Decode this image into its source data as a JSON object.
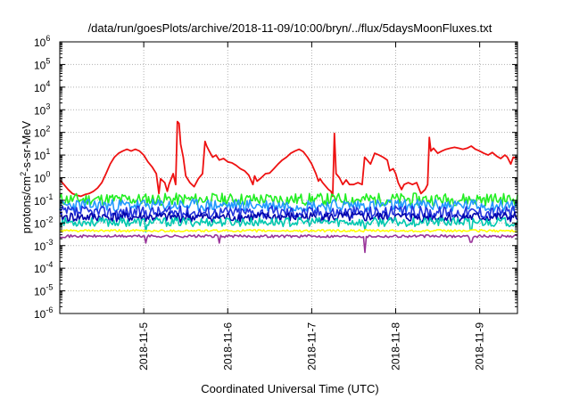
{
  "chart_data": {
    "type": "line",
    "title": "/data/run/goesPlots/archive/2018-11-09/10:00/bryn/../flux/5daysMoonFluxes.txt",
    "xlabel": "Coordinated Universal Time (UTC)",
    "ylabel": {
      "base": "protons/cm",
      "sup": "2",
      "rest": "-s-sr-MeV"
    },
    "x_range_days": [
      4.0,
      9.45
    ],
    "y_scale": "log",
    "ylim": [
      1e-06,
      1000000.0
    ],
    "grid": true,
    "x_ticks": [
      {
        "day": 5,
        "label": "2018-11-5"
      },
      {
        "day": 6,
        "label": "2018-11-6"
      },
      {
        "day": 7,
        "label": "2018-11-7"
      },
      {
        "day": 8,
        "label": "2018-11-8"
      },
      {
        "day": 9,
        "label": "2018-11-9"
      }
    ],
    "y_ticks": [
      {
        "exp": -6,
        "label": "10",
        "sup": "-6"
      },
      {
        "exp": -5,
        "label": "10",
        "sup": "-5"
      },
      {
        "exp": -4,
        "label": "10",
        "sup": "-4"
      },
      {
        "exp": -3,
        "label": "10",
        "sup": "-3"
      },
      {
        "exp": -2,
        "label": "10",
        "sup": "-2"
      },
      {
        "exp": -1,
        "label": "10",
        "sup": "-1"
      },
      {
        "exp": 0,
        "label": "10",
        "sup": "0"
      },
      {
        "exp": 1,
        "label": "10",
        "sup": "1"
      },
      {
        "exp": 2,
        "label": "10",
        "sup": "2"
      },
      {
        "exp": 3,
        "label": "10",
        "sup": "3"
      },
      {
        "exp": 4,
        "label": "10",
        "sup": "4"
      },
      {
        "exp": 5,
        "label": "10",
        "sup": "5"
      },
      {
        "exp": 6,
        "label": "10",
        "sup": "6"
      }
    ],
    "series": [
      {
        "color": "#ee1111",
        "points": [
          [
            4.0,
            0.8
          ],
          [
            4.05,
            0.5
          ],
          [
            4.1,
            0.3
          ],
          [
            4.15,
            0.2
          ],
          [
            4.2,
            0.17
          ],
          [
            4.25,
            0.15
          ],
          [
            4.3,
            0.18
          ],
          [
            4.35,
            0.2
          ],
          [
            4.4,
            0.25
          ],
          [
            4.45,
            0.35
          ],
          [
            4.5,
            0.6
          ],
          [
            4.55,
            1.5
          ],
          [
            4.6,
            4
          ],
          [
            4.65,
            8
          ],
          [
            4.7,
            12
          ],
          [
            4.75,
            15
          ],
          [
            4.8,
            18
          ],
          [
            4.85,
            15
          ],
          [
            4.9,
            18
          ],
          [
            4.95,
            15
          ],
          [
            5.0,
            10
          ],
          [
            5.05,
            5
          ],
          [
            5.1,
            3
          ],
          [
            5.15,
            1.5
          ],
          [
            5.18,
            0.2
          ],
          [
            5.2,
            0.9
          ],
          [
            5.25,
            0.6
          ],
          [
            5.28,
            0.25
          ],
          [
            5.3,
            0.5
          ],
          [
            5.35,
            1.5
          ],
          [
            5.38,
            0.5
          ],
          [
            5.4,
            300
          ],
          [
            5.42,
            250
          ],
          [
            5.44,
            30
          ],
          [
            5.47,
            8
          ],
          [
            5.5,
            1.2
          ],
          [
            5.55,
            0.6
          ],
          [
            5.6,
            0.4
          ],
          [
            5.65,
            0.9
          ],
          [
            5.7,
            1.5
          ],
          [
            5.73,
            40
          ],
          [
            5.75,
            25
          ],
          [
            5.78,
            15
          ],
          [
            5.82,
            8
          ],
          [
            5.86,
            10
          ],
          [
            5.9,
            6
          ],
          [
            5.95,
            7
          ],
          [
            6.0,
            5
          ],
          [
            6.05,
            4.5
          ],
          [
            6.1,
            3.5
          ],
          [
            6.15,
            2.5
          ],
          [
            6.2,
            2
          ],
          [
            6.25,
            1.3
          ],
          [
            6.3,
            0.5
          ],
          [
            6.32,
            1.2
          ],
          [
            6.35,
            0.7
          ],
          [
            6.4,
            1
          ],
          [
            6.45,
            1.5
          ],
          [
            6.5,
            1.6
          ],
          [
            6.55,
            2.5
          ],
          [
            6.6,
            4
          ],
          [
            6.65,
            6
          ],
          [
            6.7,
            8
          ],
          [
            6.75,
            12
          ],
          [
            6.8,
            15
          ],
          [
            6.85,
            18
          ],
          [
            6.9,
            14
          ],
          [
            6.95,
            8
          ],
          [
            7.0,
            4
          ],
          [
            7.05,
            1.5
          ],
          [
            7.08,
            0.7
          ],
          [
            7.1,
            0.9
          ],
          [
            7.13,
            0.6
          ],
          [
            7.17,
            0.4
          ],
          [
            7.2,
            0.3
          ],
          [
            7.23,
            0.25
          ],
          [
            7.25,
            0.15
          ],
          [
            7.27,
            90
          ],
          [
            7.29,
            1.5
          ],
          [
            7.33,
            1
          ],
          [
            7.37,
            0.5
          ],
          [
            7.41,
            0.8
          ],
          [
            7.45,
            0.5
          ],
          [
            7.5,
            0.5
          ],
          [
            7.55,
            0.6
          ],
          [
            7.6,
            0.5
          ],
          [
            7.63,
            8
          ],
          [
            7.66,
            6
          ],
          [
            7.7,
            4
          ],
          [
            7.75,
            12
          ],
          [
            7.8,
            10
          ],
          [
            7.85,
            8
          ],
          [
            7.9,
            6
          ],
          [
            7.93,
            2
          ],
          [
            7.97,
            2.5
          ],
          [
            8.0,
            1.5
          ],
          [
            8.03,
            0.6
          ],
          [
            8.07,
            0.3
          ],
          [
            8.1,
            0.5
          ],
          [
            8.15,
            0.6
          ],
          [
            8.2,
            0.5
          ],
          [
            8.25,
            0.6
          ],
          [
            8.3,
            0.2
          ],
          [
            8.35,
            0.3
          ],
          [
            8.38,
            0.5
          ],
          [
            8.4,
            60
          ],
          [
            8.42,
            15
          ],
          [
            8.45,
            20
          ],
          [
            8.5,
            12
          ],
          [
            8.55,
            15
          ],
          [
            8.6,
            18
          ],
          [
            8.65,
            20
          ],
          [
            8.7,
            22
          ],
          [
            8.75,
            20
          ],
          [
            8.8,
            18
          ],
          [
            8.85,
            20
          ],
          [
            8.9,
            25
          ],
          [
            8.95,
            18
          ],
          [
            9.0,
            15
          ],
          [
            9.05,
            12
          ],
          [
            9.1,
            10
          ],
          [
            9.15,
            13
          ],
          [
            9.2,
            9
          ],
          [
            9.25,
            7
          ],
          [
            9.3,
            10
          ],
          [
            9.33,
            8
          ],
          [
            9.37,
            4
          ],
          [
            9.4,
            8
          ],
          [
            9.45,
            7
          ]
        ]
      },
      {
        "color": "#22ee22",
        "base": 0.11,
        "noise": 0.55,
        "seed": 11,
        "dips": []
      },
      {
        "color": "#2299ff",
        "base": 0.06,
        "noise": 0.55,
        "seed": 23,
        "dips": []
      },
      {
        "color": "#2233dd",
        "base": 0.03,
        "noise": 0.55,
        "seed": 37,
        "dips": []
      },
      {
        "color": "#0000aa",
        "base": 0.018,
        "noise": 0.45,
        "seed": 41,
        "dips": []
      },
      {
        "color": "#00c8b0",
        "base": 0.011,
        "noise": 0.4,
        "seed": 53,
        "dips": [
          [
            5.02,
            0.004
          ],
          [
            7.63,
            0.005
          ],
          [
            8.9,
            0.005
          ]
        ]
      },
      {
        "color": "#ffff00",
        "base": 0.0045,
        "noise": 0.1,
        "seed": 61,
        "dips": []
      },
      {
        "color": "#993399",
        "base": 0.0026,
        "noise": 0.12,
        "seed": 71,
        "dips": [
          [
            5.02,
            0.0013
          ],
          [
            5.9,
            0.0013
          ],
          [
            7.63,
            0.0005
          ],
          [
            8.9,
            0.0014
          ]
        ]
      }
    ]
  }
}
